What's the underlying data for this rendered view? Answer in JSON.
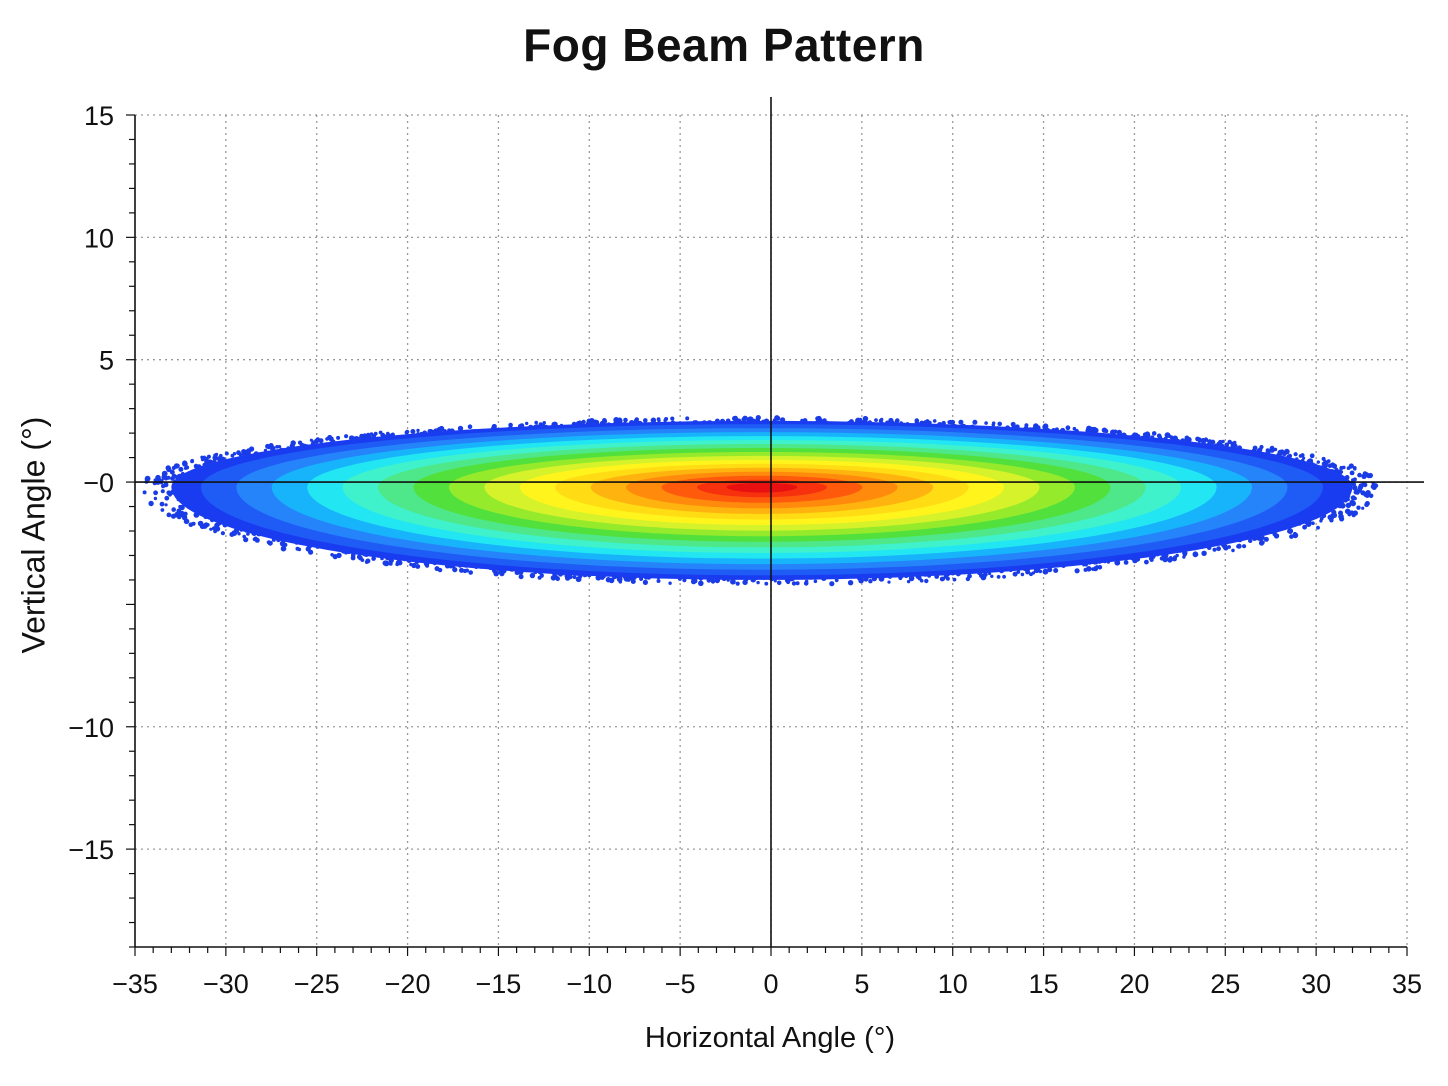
{
  "chart_data": {
    "type": "heatmap",
    "title": "Fog Beam Pattern",
    "xlabel": "Horizontal Angle (°)",
    "ylabel": "Vertical Angle (°)",
    "xlim": [
      -35,
      35
    ],
    "ylim": [
      -19,
      15
    ],
    "x_ticks": [
      {
        "value": -35,
        "label": "−35"
      },
      {
        "value": -30,
        "label": "−30"
      },
      {
        "value": -25,
        "label": "−25"
      },
      {
        "value": -20,
        "label": "−20"
      },
      {
        "value": -15,
        "label": "−15"
      },
      {
        "value": -10,
        "label": "−10"
      },
      {
        "value": -5,
        "label": "−5"
      },
      {
        "value": 0,
        "label": "0"
      },
      {
        "value": 5,
        "label": "5"
      },
      {
        "value": 10,
        "label": "10"
      },
      {
        "value": 15,
        "label": "15"
      },
      {
        "value": 20,
        "label": "20"
      },
      {
        "value": 25,
        "label": "25"
      },
      {
        "value": 30,
        "label": "30"
      },
      {
        "value": 35,
        "label": "35"
      }
    ],
    "y_ticks": [
      {
        "value": 15,
        "label": "15"
      },
      {
        "value": 10,
        "label": "10"
      },
      {
        "value": 5,
        "label": "5"
      },
      {
        "value": 0,
        "label": "−0"
      },
      {
        "value": -10,
        "label": "−10"
      },
      {
        "value": -15,
        "label": "−15"
      }
    ],
    "grid": true,
    "grid_style": "dotted",
    "center_lines": {
      "x": 0,
      "y": 0
    },
    "beam": {
      "center": [
        -0.5,
        -0.2
      ],
      "half_width_x": 32.5,
      "half_height_upper": 2.7,
      "half_height_lower": 3.8
    },
    "contour_levels": [
      {
        "scale": 1.0,
        "color": "#1a3cf0"
      },
      {
        "scale": 0.95,
        "color": "#1f5cf5"
      },
      {
        "scale": 0.89,
        "color": "#2584fa"
      },
      {
        "scale": 0.83,
        "color": "#17b4fb"
      },
      {
        "scale": 0.77,
        "color": "#22e6f2"
      },
      {
        "scale": 0.71,
        "color": "#3ff2cc"
      },
      {
        "scale": 0.65,
        "color": "#4ee88a"
      },
      {
        "scale": 0.59,
        "color": "#52e03c"
      },
      {
        "scale": 0.53,
        "color": "#95ea2c"
      },
      {
        "scale": 0.47,
        "color": "#d6f22a"
      },
      {
        "scale": 0.41,
        "color": "#fff41c"
      },
      {
        "scale": 0.35,
        "color": "#ffdc14"
      },
      {
        "scale": 0.29,
        "color": "#ffb30f"
      },
      {
        "scale": 0.23,
        "color": "#ff8a0c"
      },
      {
        "scale": 0.17,
        "color": "#ff5a0c"
      },
      {
        "scale": 0.11,
        "color": "#f7300e"
      },
      {
        "scale": 0.06,
        "color": "#e81010"
      }
    ],
    "scatter_color": "#1a3ce6",
    "colors": {
      "axis": "#111111",
      "grid": "#9a9a9a"
    }
  }
}
